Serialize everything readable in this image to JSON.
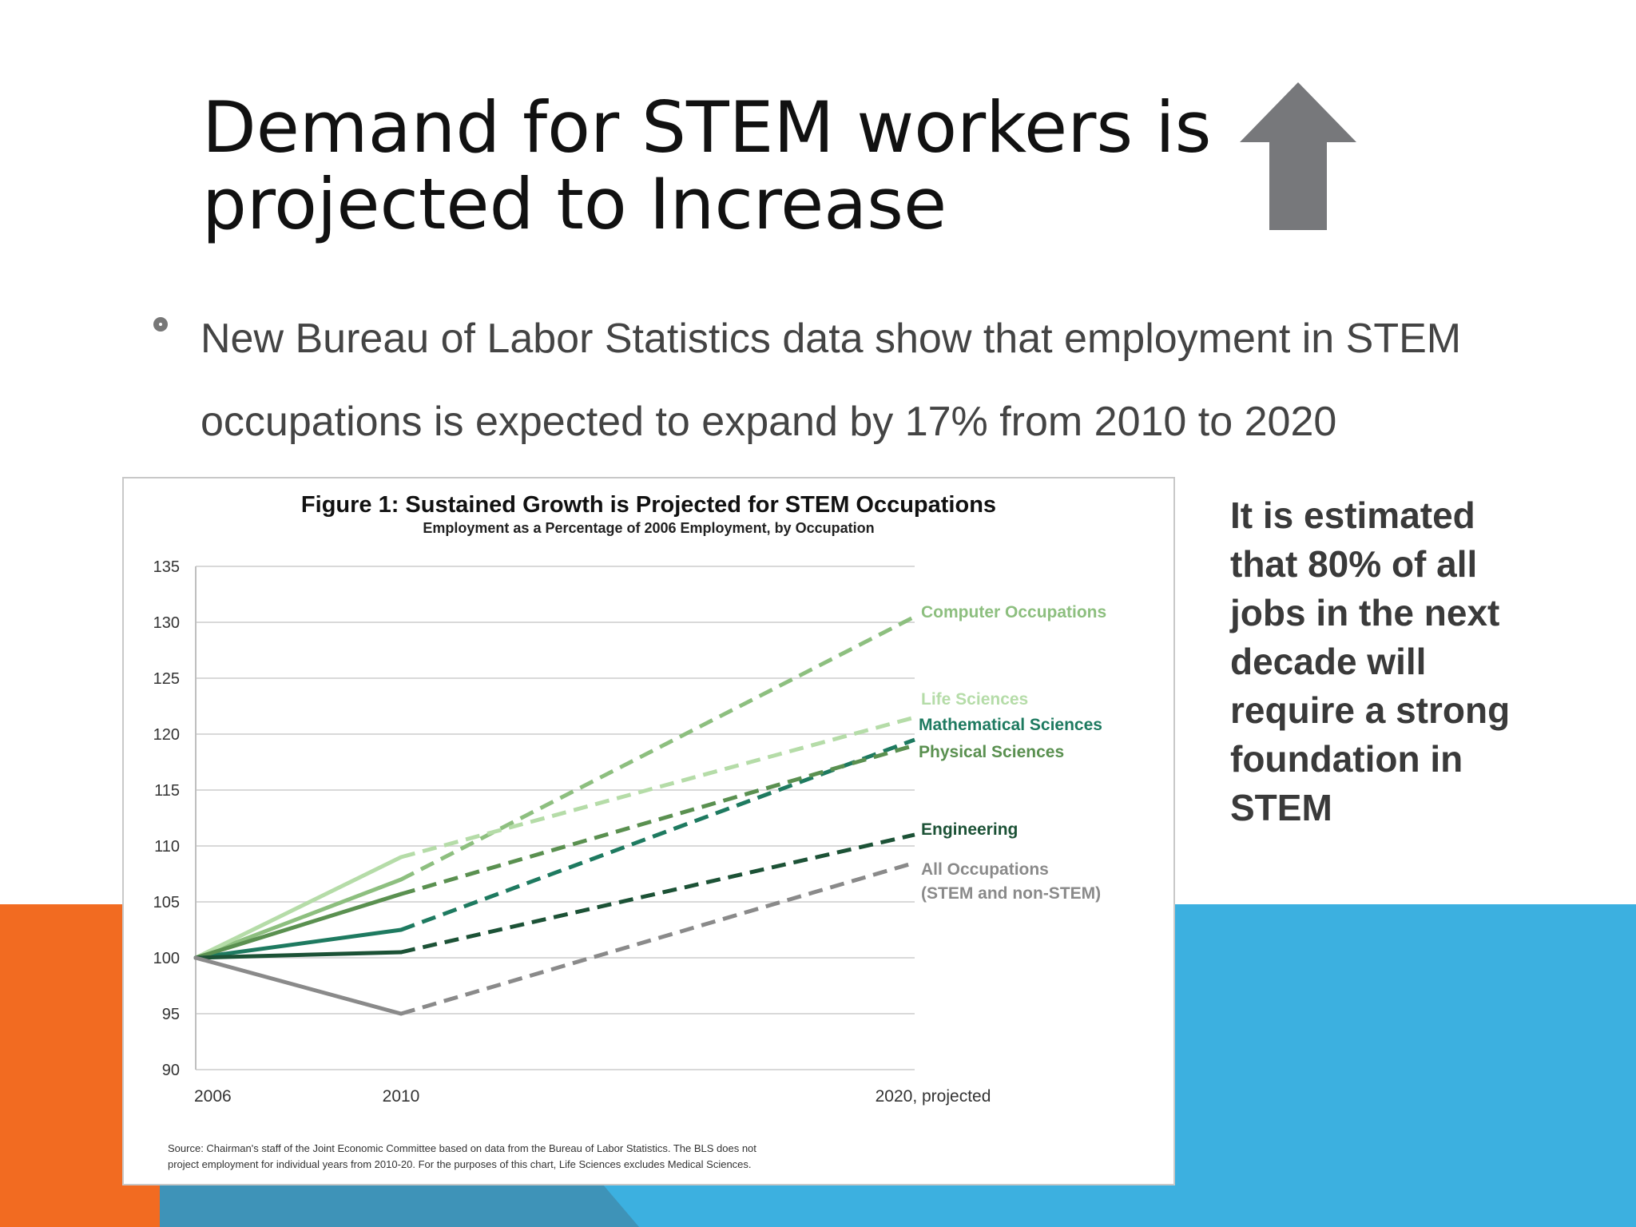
{
  "slide": {
    "title": "Demand for STEM workers is projected to Increase",
    "bullet": "New Bureau of Labor Statistics data show that employment in STEM occupations is expected to expand by 17% from 2010 to 2020",
    "side_text": "It is estimated that 80% of all jobs in the next decade will require a strong foundation in STEM"
  },
  "colors": {
    "arrow": "#77787b",
    "blue_band": "#3cb0e0",
    "orange_band": "#f26b21"
  },
  "chart_data": {
    "type": "line",
    "title": "Figure 1: Sustained Growth is Projected for STEM Occupations",
    "subtitle": "Employment as a Percentage of 2006 Employment, by Occupation",
    "x": [
      "2006",
      "2010",
      "2020, projected"
    ],
    "ylim": [
      90,
      135
    ],
    "yticks": [
      "135",
      "130",
      "125",
      "120",
      "115",
      "110",
      "105",
      "100",
      "95",
      "90"
    ],
    "grid": true,
    "solid_segment": "2006–2010",
    "dashed_segment": "2010–2020, projected",
    "series": [
      {
        "name": "Computer Occupations",
        "values": [
          100,
          107,
          130.5
        ],
        "color": "#8dbf7f"
      },
      {
        "name": "Life Sciences",
        "values": [
          100,
          109,
          121.5
        ],
        "color": "#b5dca8"
      },
      {
        "name": "Mathematical Sciences",
        "values": [
          100,
          102.5,
          119.5
        ],
        "color": "#1e7a60"
      },
      {
        "name": "Physical Sciences",
        "values": [
          100,
          105.7,
          119
        ],
        "color": "#5a9050"
      },
      {
        "name": "Engineering",
        "values": [
          100,
          100.5,
          111
        ],
        "color": "#1c5236"
      },
      {
        "name": "All Occupations",
        "name_line2": "(STEM and non-STEM)",
        "values": [
          100,
          95,
          108.5
        ],
        "color": "#8a8a8a"
      }
    ],
    "source_line1": "Source: Chairman's staff of the Joint Economic Committee based on data from the Bureau of Labor Statistics. The BLS does not",
    "source_line2": "project employment for individual years from 2010-20. For the purposes of this chart, Life Sciences excludes Medical Sciences."
  }
}
